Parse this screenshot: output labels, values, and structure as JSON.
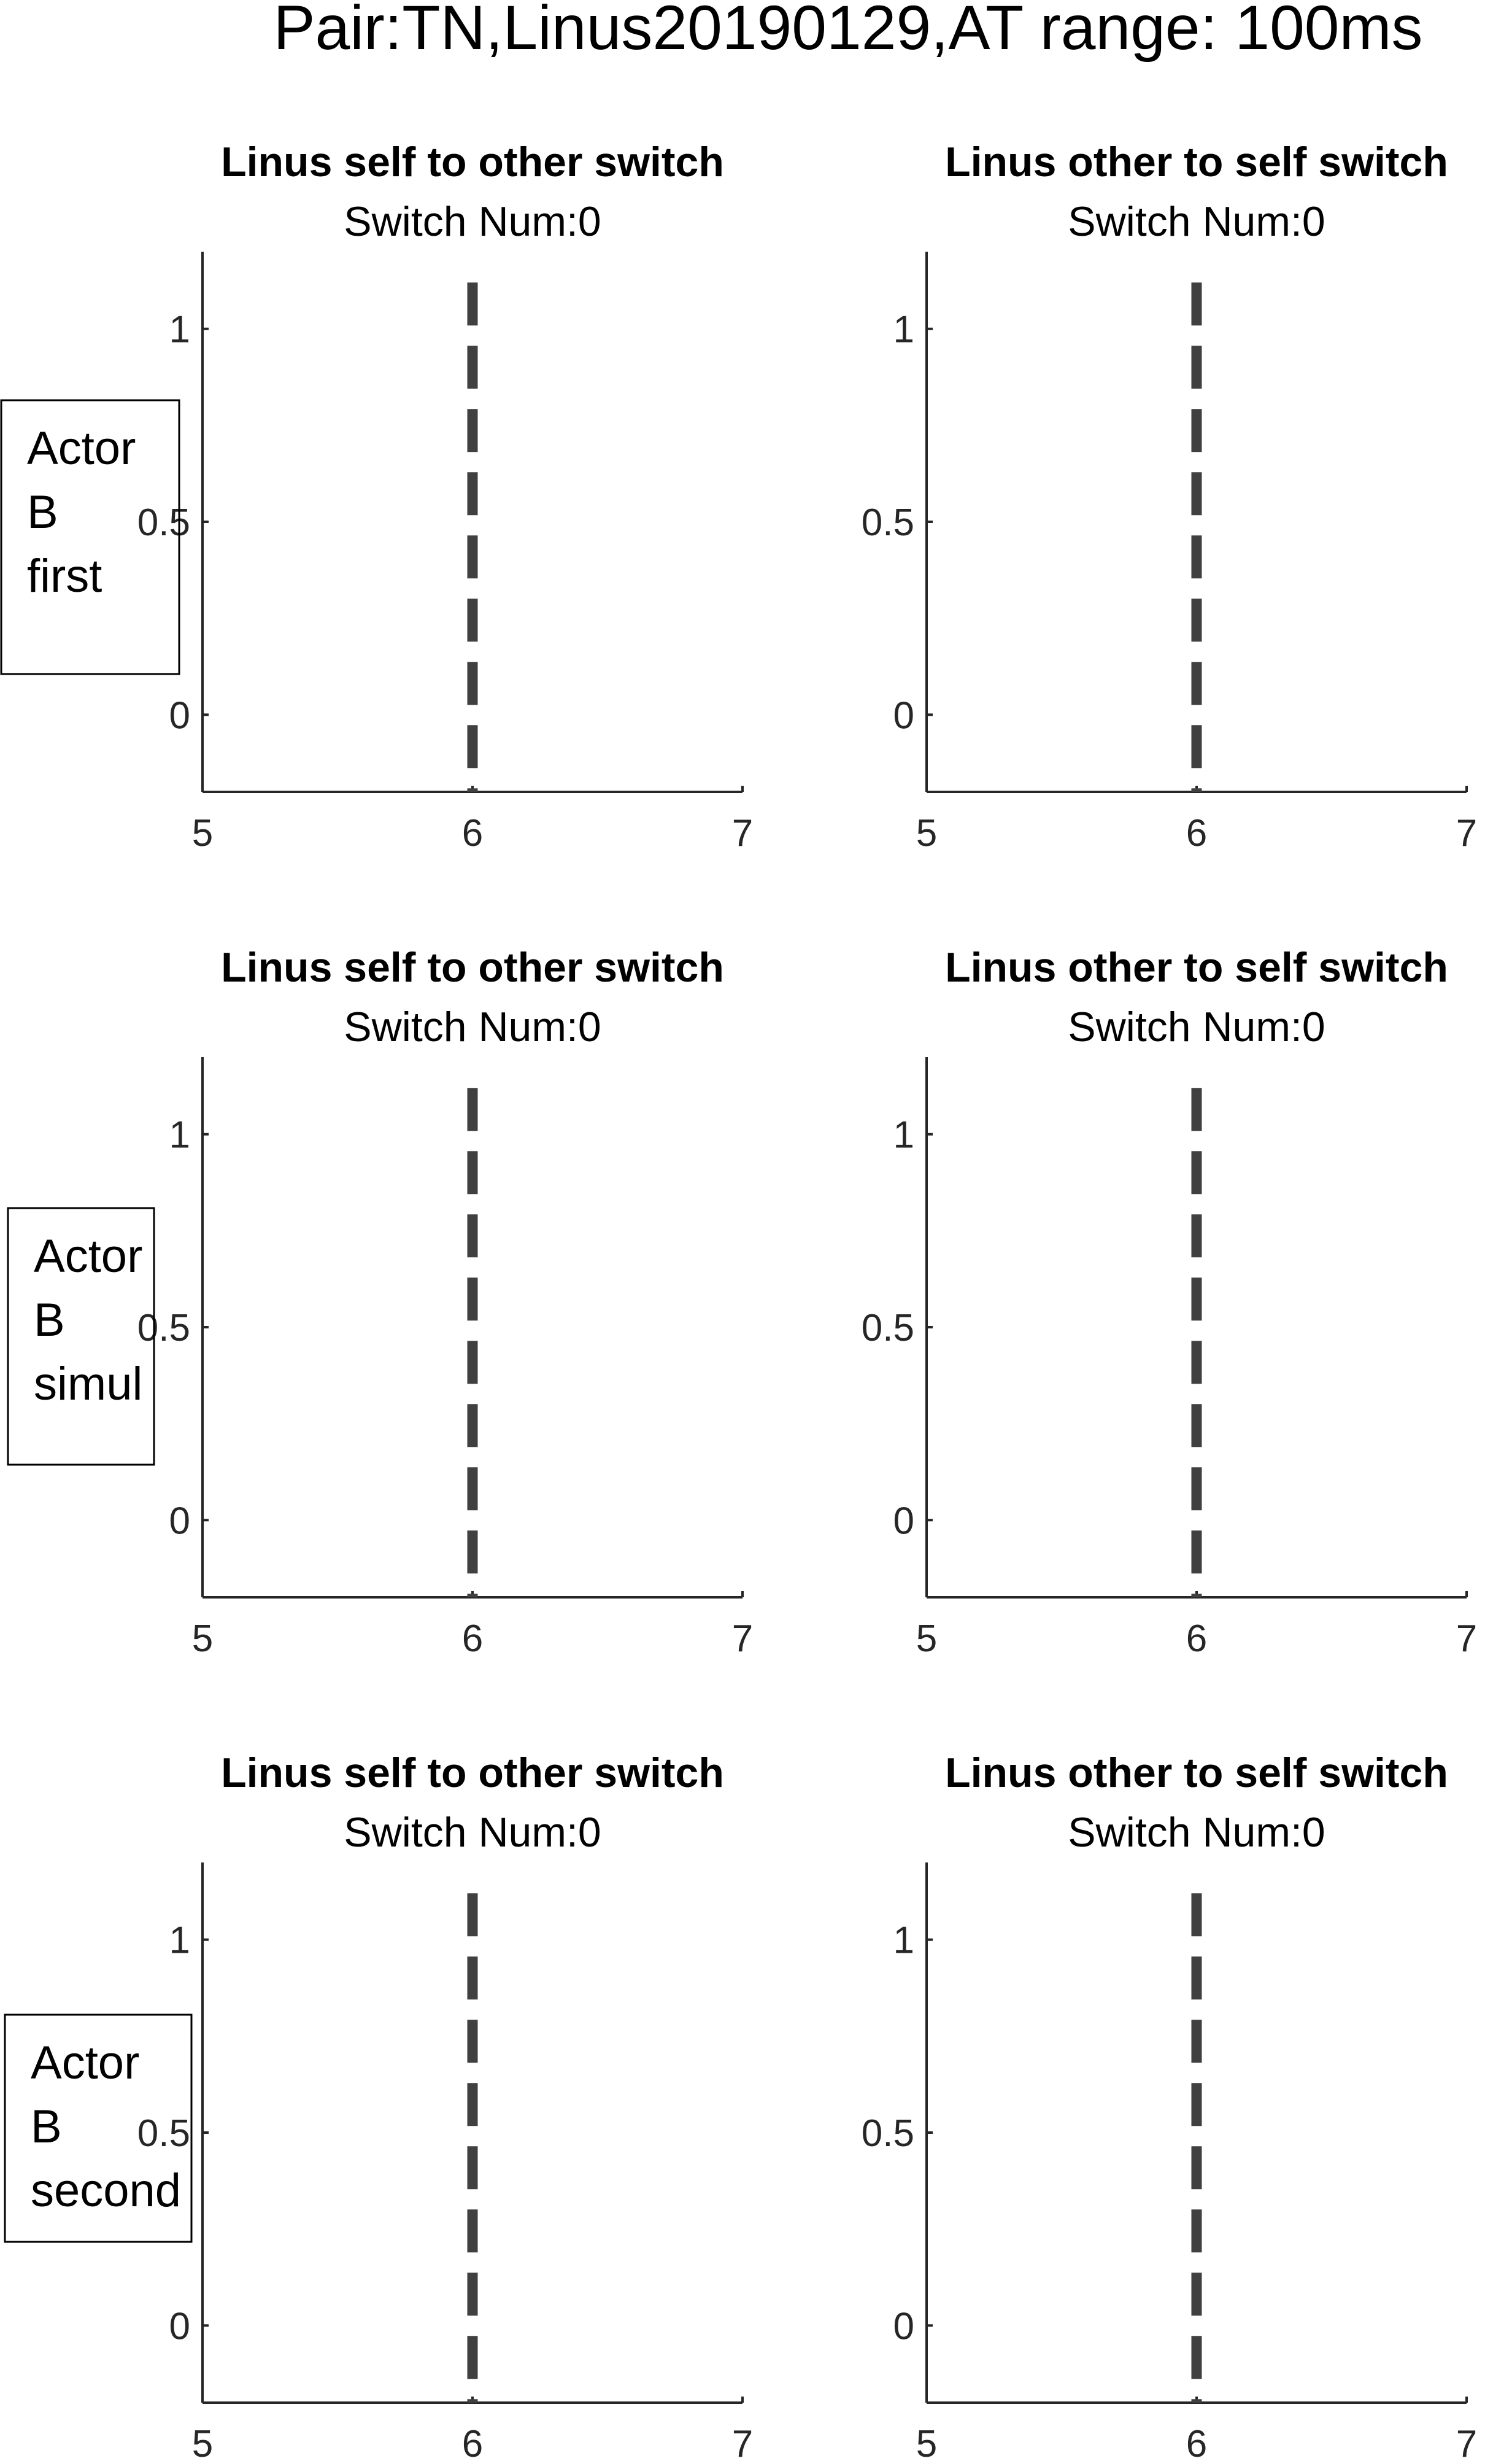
{
  "figure": {
    "title": "Pair:TN,Linus20190129,AT range: 100ms"
  },
  "row_labels": [
    {
      "lines": [
        "Actor",
        "B",
        "first"
      ]
    },
    {
      "lines": [
        "Actor",
        "B",
        "simul"
      ]
    },
    {
      "lines": [
        "Actor",
        "B",
        "second"
      ]
    }
  ],
  "chart_data": [
    {
      "type": "line",
      "row": 0,
      "col": 0,
      "title": "Linus self to other switch",
      "subtitle": "Switch Num:0",
      "xlim": [
        5,
        7
      ],
      "ylim": [
        -0.2,
        1.2
      ],
      "xticks": [
        5,
        6,
        7
      ],
      "yticks": [
        0,
        0.5,
        1
      ],
      "xtick_labels": [
        "5",
        "6",
        "7"
      ],
      "ytick_labels": [
        "0",
        "0.5",
        "1"
      ],
      "series": [],
      "annotations": [
        {
          "kind": "vertical-dashed-line",
          "x": 6,
          "y_range": [
            -0.2,
            1.12
          ],
          "color": "#404040"
        }
      ]
    },
    {
      "type": "line",
      "row": 0,
      "col": 1,
      "title": "Linus other to self switch",
      "subtitle": "Switch Num:0",
      "xlim": [
        5,
        7
      ],
      "ylim": [
        -0.2,
        1.2
      ],
      "xticks": [
        5,
        6,
        7
      ],
      "yticks": [
        0,
        0.5,
        1
      ],
      "xtick_labels": [
        "5",
        "6",
        "7"
      ],
      "ytick_labels": [
        "0",
        "0.5",
        "1"
      ],
      "series": [],
      "annotations": [
        {
          "kind": "vertical-dashed-line",
          "x": 6,
          "y_range": [
            -0.2,
            1.12
          ],
          "color": "#404040"
        }
      ]
    },
    {
      "type": "line",
      "row": 1,
      "col": 0,
      "title": "Linus self to other switch",
      "subtitle": "Switch Num:0",
      "xlim": [
        5,
        7
      ],
      "ylim": [
        -0.2,
        1.2
      ],
      "xticks": [
        5,
        6,
        7
      ],
      "yticks": [
        0,
        0.5,
        1
      ],
      "xtick_labels": [
        "5",
        "6",
        "7"
      ],
      "ytick_labels": [
        "0",
        "0.5",
        "1"
      ],
      "series": [],
      "annotations": [
        {
          "kind": "vertical-dashed-line",
          "x": 6,
          "y_range": [
            -0.2,
            1.12
          ],
          "color": "#404040"
        }
      ]
    },
    {
      "type": "line",
      "row": 1,
      "col": 1,
      "title": "Linus other to self switch",
      "subtitle": "Switch Num:0",
      "xlim": [
        5,
        7
      ],
      "ylim": [
        -0.2,
        1.2
      ],
      "xticks": [
        5,
        6,
        7
      ],
      "yticks": [
        0,
        0.5,
        1
      ],
      "xtick_labels": [
        "5",
        "6",
        "7"
      ],
      "ytick_labels": [
        "0",
        "0.5",
        "1"
      ],
      "series": [],
      "annotations": [
        {
          "kind": "vertical-dashed-line",
          "x": 6,
          "y_range": [
            -0.2,
            1.12
          ],
          "color": "#404040"
        }
      ]
    },
    {
      "type": "line",
      "row": 2,
      "col": 0,
      "title": "Linus self to other switch",
      "subtitle": "Switch Num:0",
      "xlim": [
        5,
        7
      ],
      "ylim": [
        -0.2,
        1.2
      ],
      "xticks": [
        5,
        6,
        7
      ],
      "yticks": [
        0,
        0.5,
        1
      ],
      "xtick_labels": [
        "5",
        "6",
        "7"
      ],
      "ytick_labels": [
        "0",
        "0.5",
        "1"
      ],
      "series": [],
      "annotations": [
        {
          "kind": "vertical-dashed-line",
          "x": 6,
          "y_range": [
            -0.2,
            1.12
          ],
          "color": "#404040"
        }
      ]
    },
    {
      "type": "line",
      "row": 2,
      "col": 1,
      "title": "Linus other to self switch",
      "subtitle": "Switch Num:0",
      "xlim": [
        5,
        7
      ],
      "ylim": [
        -0.2,
        1.2
      ],
      "xticks": [
        5,
        6,
        7
      ],
      "yticks": [
        0,
        0.5,
        1
      ],
      "xtick_labels": [
        "5",
        "6",
        "7"
      ],
      "ytick_labels": [
        "0",
        "0.5",
        "1"
      ],
      "series": [],
      "annotations": [
        {
          "kind": "vertical-dashed-line",
          "x": 6,
          "y_range": [
            -0.2,
            1.12
          ],
          "color": "#404040"
        }
      ]
    }
  ]
}
